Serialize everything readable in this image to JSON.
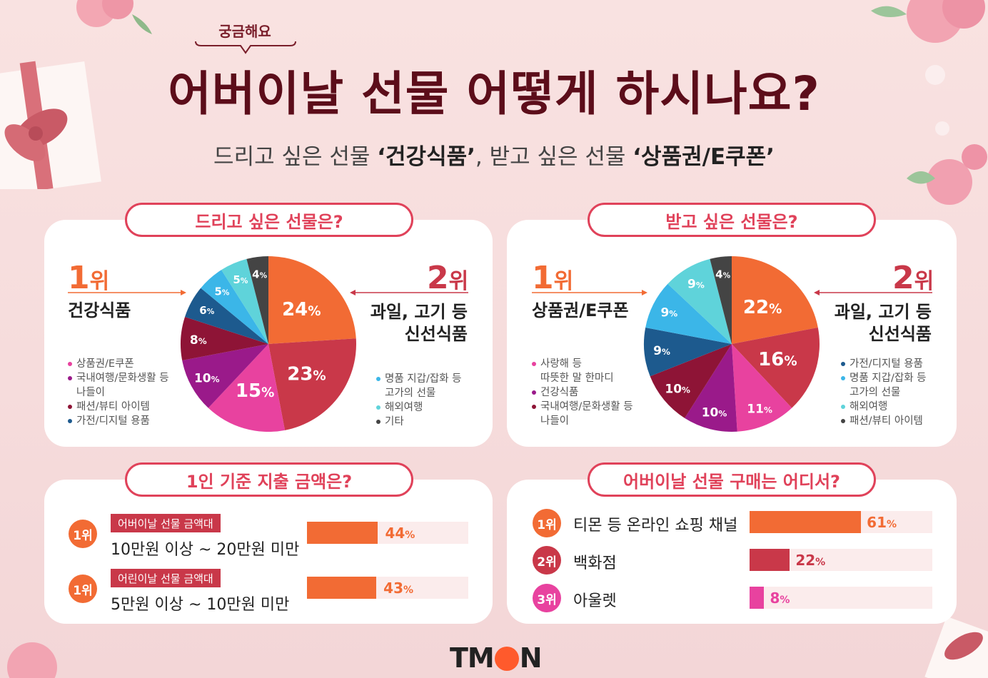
{
  "header": {
    "eyebrow": "궁금해요",
    "title": "어버이날 선물 어떻게 하시나요?",
    "subtitle_parts": [
      "드리고 싶은 선물 ",
      "‘건강식품’",
      ", 받고 싶은 선물 ",
      "‘상품권/E쿠폰’"
    ]
  },
  "give_panel": {
    "pill": "드리고 싶은 선물은?",
    "rank1": {
      "num": "1",
      "suffix": "위",
      "item": "건강식품"
    },
    "rank2": {
      "num": "2",
      "suffix": "위",
      "item_line1": "과일, 고기 등",
      "item_line2": "신선식품"
    },
    "legend_left": [
      {
        "label": "상품권/E쿠폰",
        "color": "#e8429f"
      },
      {
        "label": "국내여행/문화생활 등",
        "label2": "나들이",
        "color": "#9a1a8a"
      },
      {
        "label": "패션/뷰티 아이템",
        "color": "#8e1436"
      },
      {
        "label": "가전/디지털 용품",
        "color": "#1d5a8e"
      }
    ],
    "legend_right": [
      {
        "label": "명품 지갑/잡화 등",
        "label2": "고가의 선물",
        "color": "#3bb6e8"
      },
      {
        "label": "해외여행",
        "color": "#5fd3da"
      },
      {
        "label": "기타",
        "color": "#444444"
      }
    ]
  },
  "receive_panel": {
    "pill": "받고 싶은 선물은?",
    "rank1": {
      "num": "1",
      "suffix": "위",
      "item": "상품권/E쿠폰"
    },
    "rank2": {
      "num": "2",
      "suffix": "위",
      "item_line1": "과일, 고기 등",
      "item_line2": "신선식품"
    },
    "legend_left": [
      {
        "label": "사랑해 등",
        "label2": "따뜻한 말 한마디",
        "color": "#e8429f"
      },
      {
        "label": "건강식품",
        "color": "#9a1a8a"
      },
      {
        "label": "국내여행/문화생활 등",
        "label2": "나들이",
        "color": "#8e1436"
      }
    ],
    "legend_right": [
      {
        "label": "가전/디지털 용품",
        "color": "#1d5a8e"
      },
      {
        "label": "명품 지갑/잡화 등",
        "label2": "고가의 선물",
        "color": "#3bb6e8"
      },
      {
        "label": "해외여행",
        "color": "#5fd3da"
      },
      {
        "label": "패션/뷰티 아이템",
        "color": "#444444"
      }
    ]
  },
  "spend_panel": {
    "pill": "1인 기준 지출 금액은?",
    "rows": [
      {
        "rank": "1위",
        "tag": "어버이날 선물 금액대",
        "amount": "10만원 이상 ~ 20만원 미만",
        "value": 44,
        "value_label": "44",
        "unit": "%"
      },
      {
        "rank": "1위",
        "tag": "어린이날 선물 금액대",
        "amount": "5만원 이상 ~ 10만원 미만",
        "value": 43,
        "value_label": "43",
        "unit": "%"
      }
    ]
  },
  "channel_panel": {
    "pill": "어버이날 선물 구매는 어디서?",
    "rows": [
      {
        "rank": "1위",
        "label": "티몬 등 온라인 쇼핑 채널",
        "value": 61,
        "value_label": "61",
        "unit": "%",
        "color": "#f26b34"
      },
      {
        "rank": "2위",
        "label": "백화점",
        "value": 22,
        "value_label": "22",
        "unit": "%",
        "color": "#c93849"
      },
      {
        "rank": "3위",
        "label": "아울렛",
        "value": 8,
        "value_label": "8",
        "unit": "%",
        "color": "#e8429f"
      }
    ]
  },
  "logo": {
    "t": "TM",
    "rest": "N"
  },
  "chart_data": [
    {
      "type": "pie",
      "title": "드리고 싶은 선물은?",
      "categories": [
        "건강식품",
        "과일, 고기 등 신선식품",
        "상품권/E쿠폰",
        "국내여행/문화생활 등 나들이",
        "패션/뷰티 아이템",
        "가전/디지털 용품",
        "명품 지갑/잡화 등 고가의 선물",
        "해외여행",
        "기타"
      ],
      "values": [
        24,
        23,
        15,
        10,
        8,
        6,
        5,
        5,
        4
      ],
      "colors": [
        "#f26b34",
        "#c93849",
        "#e8429f",
        "#9a1a8a",
        "#8e1436",
        "#1d5a8e",
        "#3bb6e8",
        "#5fd3da",
        "#444444"
      ]
    },
    {
      "type": "pie",
      "title": "받고 싶은 선물은?",
      "categories": [
        "상품권/E쿠폰",
        "과일, 고기 등 신선식품",
        "사랑해 등 따뜻한 말 한마디",
        "건강식품",
        "국내여행/문화생활 등 나들이",
        "가전/디지털 용품",
        "명품 지갑/잡화 등 고가의 선물",
        "해외여행",
        "패션/뷰티 아이템"
      ],
      "values": [
        22,
        16,
        11,
        10,
        10,
        9,
        9,
        9,
        4
      ],
      "colors": [
        "#f26b34",
        "#c93849",
        "#e8429f",
        "#9a1a8a",
        "#8e1436",
        "#1d5a8e",
        "#3bb6e8",
        "#5fd3da",
        "#444444"
      ]
    },
    {
      "type": "bar",
      "title": "1인 기준 지출 금액은?",
      "categories": [
        "10만원 이상 ~ 20만원 미만",
        "5만원 이상 ~ 10만원 미만"
      ],
      "values": [
        44,
        43
      ]
    },
    {
      "type": "bar",
      "title": "어버이날 선물 구매는 어디서?",
      "categories": [
        "티몬 등 온라인 쇼핑 채널",
        "백화점",
        "아울렛"
      ],
      "values": [
        61,
        22,
        8
      ]
    }
  ]
}
